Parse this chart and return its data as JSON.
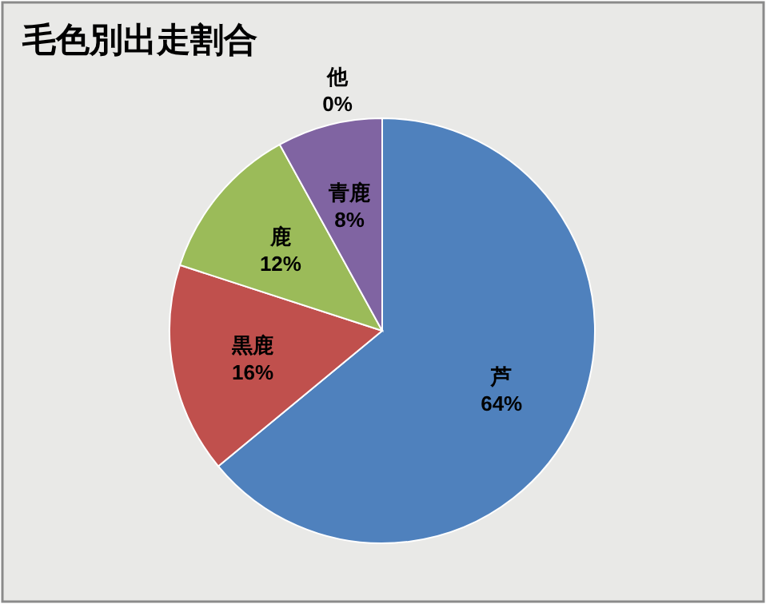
{
  "chart_data": {
    "type": "pie",
    "title": "毛色別出走割合",
    "categories": [
      "芦",
      "黒鹿",
      "鹿",
      "青鹿",
      "他"
    ],
    "values": [
      64,
      16,
      12,
      8,
      0
    ],
    "value_labels": [
      "64%",
      "16%",
      "12%",
      "8%",
      "0%"
    ],
    "colors": [
      "#4f81bd",
      "#c0504d",
      "#9bbb59",
      "#8064a2",
      "#4bacc6"
    ]
  }
}
